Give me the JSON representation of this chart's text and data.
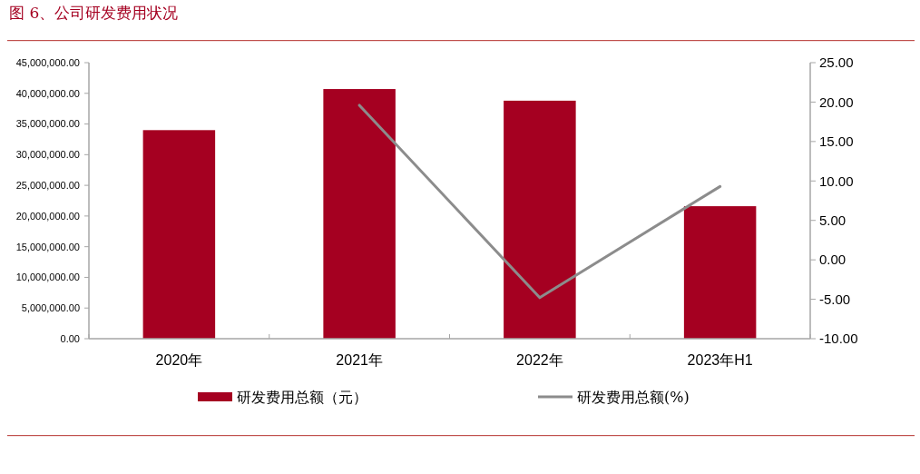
{
  "chart_data": {
    "type": "bar",
    "title": "图 6、公司研发费用状况",
    "categories": [
      "2020年",
      "2021年",
      "2022年",
      "2023年H1"
    ],
    "series": [
      {
        "name": "研发费用总额（元）",
        "color": "#a50021",
        "values": [
          34000000,
          40700000,
          38800000,
          21600000
        ]
      },
      {
        "name": "研发费用总额(%)",
        "type": "line",
        "axis": "y2",
        "color": "#8c8c8c",
        "values": [
          null,
          19.6,
          -4.8,
          9.3
        ]
      }
    ],
    "ylim": [
      0,
      45000000
    ],
    "yticks": [
      {
        "value": 0,
        "label": "0.00"
      },
      {
        "value": 5000000,
        "label": "5,000,000.00"
      },
      {
        "value": 10000000,
        "label": "10,000,000.00"
      },
      {
        "value": 15000000,
        "label": "15,000,000.00"
      },
      {
        "value": 20000000,
        "label": "20,000,000.00"
      },
      {
        "value": 25000000,
        "label": "25,000,000.00"
      },
      {
        "value": 30000000,
        "label": "30,000,000.00"
      },
      {
        "value": 35000000,
        "label": "35,000,000.00"
      },
      {
        "value": 40000000,
        "label": "40,000,000.00"
      },
      {
        "value": 45000000,
        "label": "45,000,000.00"
      }
    ],
    "y2lim": [
      -10,
      25
    ],
    "y2ticks": [
      {
        "value": -10,
        "label": "-10.00"
      },
      {
        "value": -5,
        "label": "-5.00"
      },
      {
        "value": 0,
        "label": "0.00"
      },
      {
        "value": 5,
        "label": "5.00"
      },
      {
        "value": 10,
        "label": "10.00"
      },
      {
        "value": 15,
        "label": "15.00"
      },
      {
        "value": 20,
        "label": "20.00"
      },
      {
        "value": 25,
        "label": "25.00"
      }
    ],
    "legend": "bottom",
    "grid": false
  }
}
